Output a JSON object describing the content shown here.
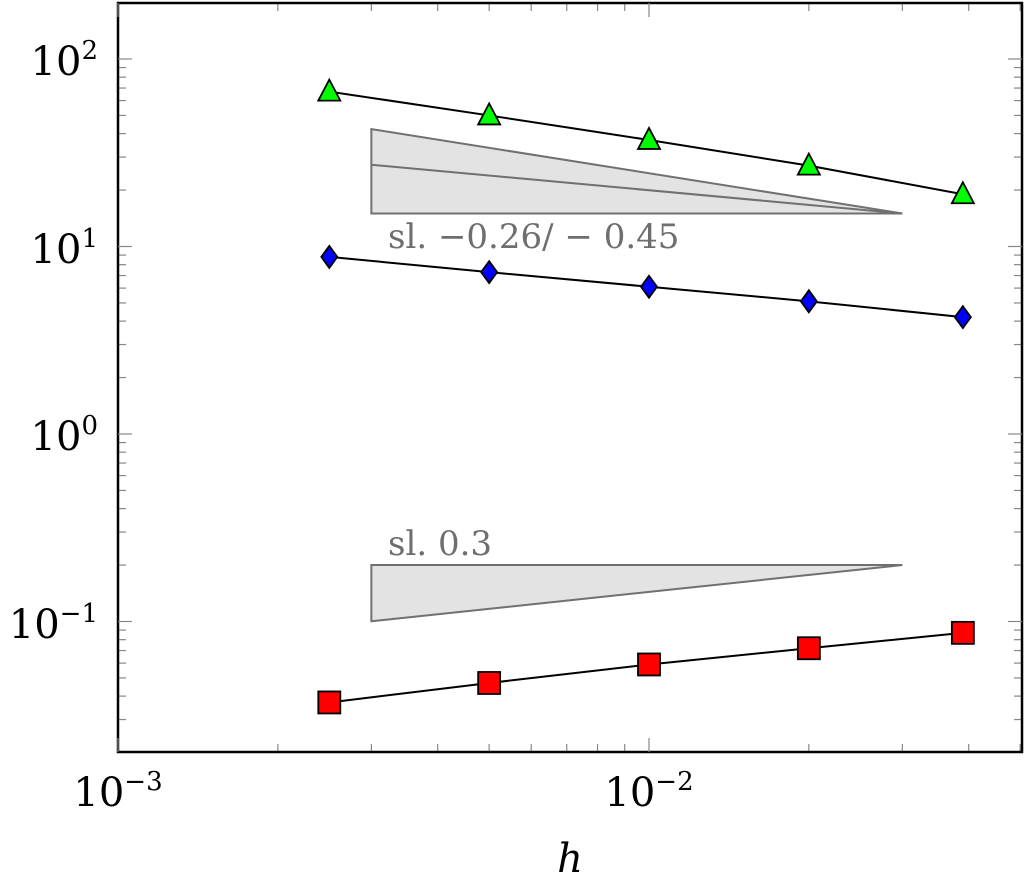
{
  "chart_data": {
    "type": "scatter",
    "title": "",
    "xlabel": "h",
    "ylabel": "",
    "xscale": "log",
    "yscale": "log",
    "xlim": [
      0.001,
      0.05
    ],
    "ylim": [
      0.03,
      200
    ],
    "grid": false,
    "x_ticks": [
      {
        "mantissa": "10",
        "exponent": "−3"
      },
      {
        "mantissa": "10",
        "exponent": "−2"
      }
    ],
    "y_ticks": [
      {
        "mantissa": "10",
        "exponent": "−1"
      },
      {
        "mantissa": "10",
        "exponent": "0"
      },
      {
        "mantissa": "10",
        "exponent": "1"
      },
      {
        "mantissa": "10",
        "exponent": "2"
      }
    ],
    "series": [
      {
        "marker": "triangle",
        "color": "#00ff00",
        "x": [
          0.0025,
          0.005,
          0.01,
          0.02,
          0.039
        ],
        "y": [
          67,
          50,
          37,
          27,
          19
        ]
      },
      {
        "marker": "diamond",
        "color": "#0000ff",
        "x": [
          0.0025,
          0.005,
          0.01,
          0.02,
          0.039
        ],
        "y": [
          8.8,
          7.3,
          6.1,
          5.1,
          4.2
        ]
      },
      {
        "marker": "square",
        "color": "#ff0000",
        "x": [
          0.0025,
          0.005,
          0.01,
          0.02,
          0.039
        ],
        "y": [
          0.037,
          0.047,
          0.059,
          0.072,
          0.087
        ]
      }
    ],
    "slope_triangles": [
      {
        "label": "sl. −0.26/ − 0.45",
        "fill": "#e3e3e3",
        "stroke": "#707070",
        "x_start": 0.003,
        "x_end": 0.03,
        "y_base": 15,
        "slopes": [
          -0.26,
          -0.45
        ]
      },
      {
        "label": "sl. 0.3",
        "fill": "#e3e3e3",
        "stroke": "#707070",
        "x_start": 0.003,
        "x_end": 0.03,
        "y_top": 0.2,
        "slope": 0.3
      }
    ]
  }
}
